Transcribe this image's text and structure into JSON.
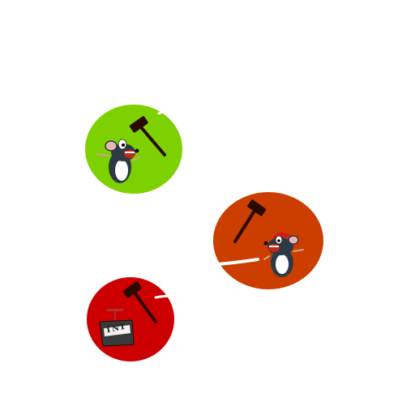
{
  "game": {
    "tokens": [
      {
        "name": "green-rat-token",
        "color": "#7ed100",
        "character": "rat-icon"
      },
      {
        "name": "orange-rat-token",
        "color": "#cc3d00",
        "character": "rat-with-red-cap-icon"
      },
      {
        "name": "red-tnt-token",
        "color": "#cc0000",
        "character": "tnt-box-icon",
        "label": "TNT"
      }
    ],
    "tool": "hammer-icon"
  }
}
